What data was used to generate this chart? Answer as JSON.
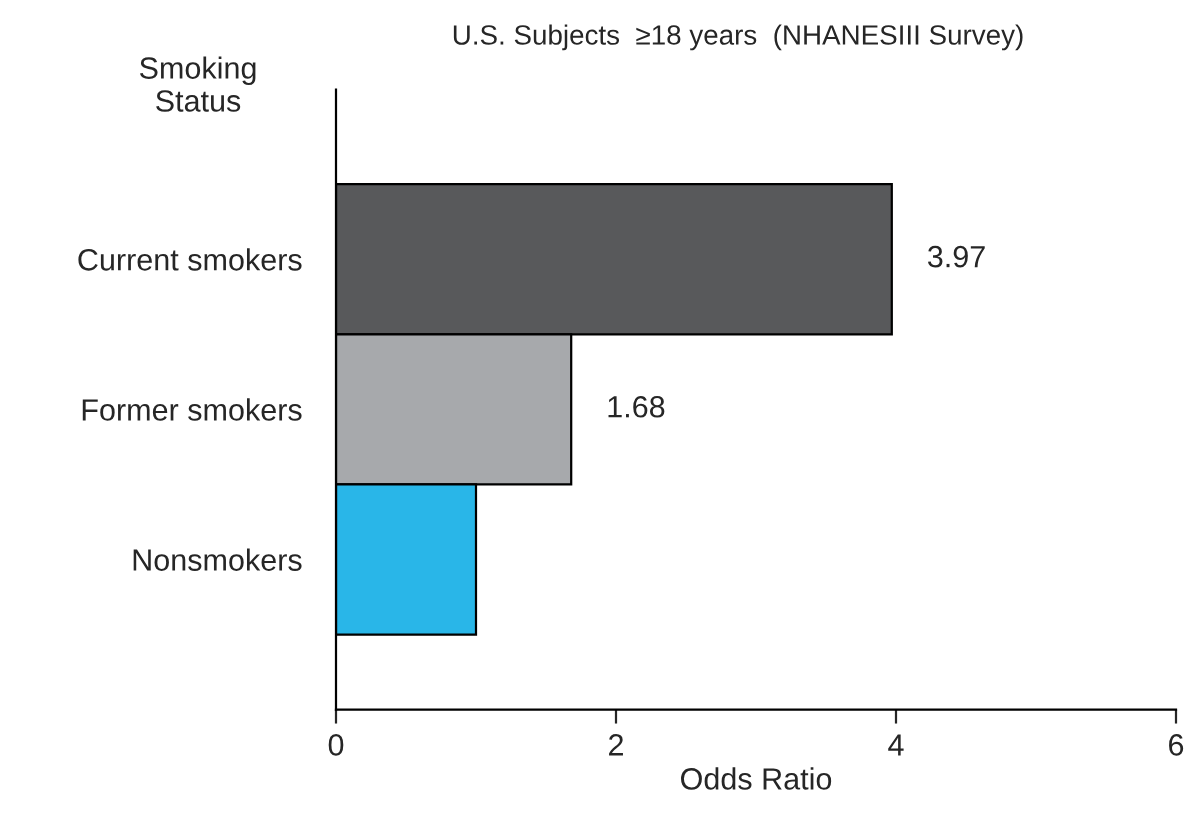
{
  "chart_data": {
    "type": "bar",
    "orientation": "horizontal",
    "title": "U.S. Subjects  ≥18 years  (NHANESIII Survey)",
    "xlabel": "Odds Ratio",
    "ylabel": "Smoking\nStatus",
    "categories": [
      "Current smokers",
      "Former smokers",
      "Nonsmokers"
    ],
    "values": [
      3.97,
      1.68,
      1.0
    ],
    "colors": [
      "#58595b",
      "#a7a9ac",
      "#29b6e8"
    ],
    "value_labels": [
      "3.97",
      "1.68",
      null
    ],
    "xlim": [
      0,
      6
    ],
    "xticks": [
      0,
      2,
      4,
      6
    ],
    "grid": false,
    "legend": false
  }
}
